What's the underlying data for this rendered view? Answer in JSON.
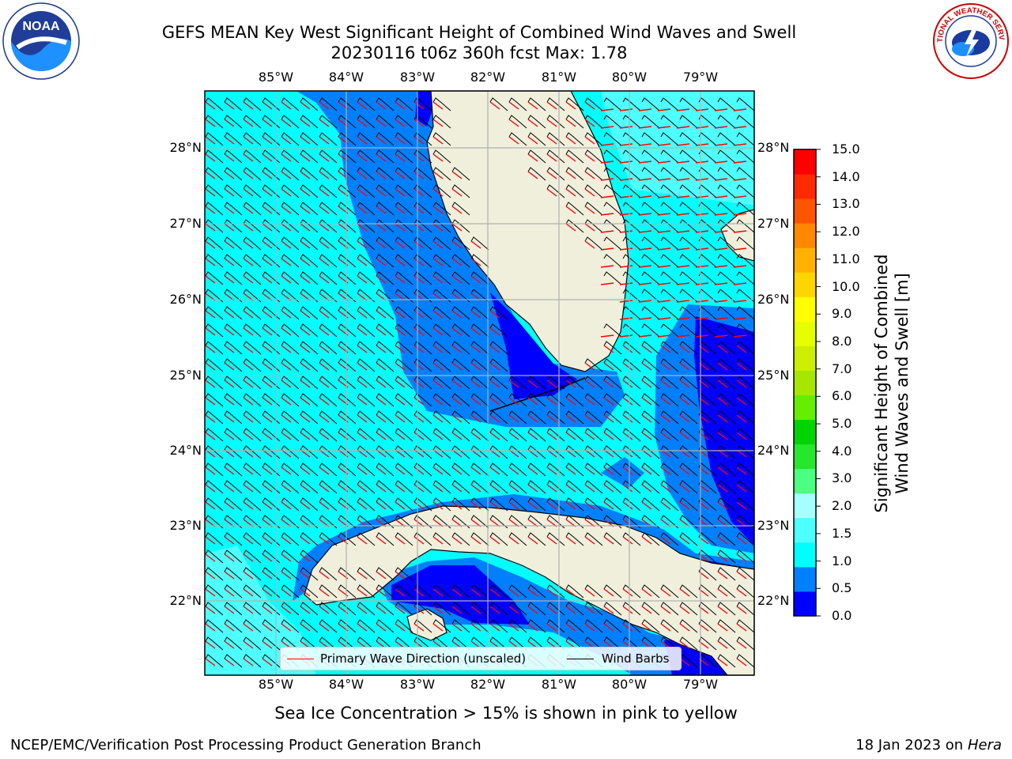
{
  "header": {
    "title_line1": "GEFS MEAN Key West Significant Height of Combined Wind Waves and Swell",
    "title_line2": "20230116 t06z 360h fcst   Max: 1.78"
  },
  "logos": {
    "noaa": {
      "icon": "noaa-logo-icon",
      "text": "NOAA",
      "ring_text": "NATIONAL OCEANIC AND ATMOSPHERIC ADMINISTRATION · U.S. DEPARTMENT OF COMMERCE"
    },
    "nws": {
      "icon": "nws-logo-icon",
      "ring_text": "NATIONAL WEATHER SERVICE"
    }
  },
  "map": {
    "lon_labels": [
      "85°W",
      "84°W",
      "83°W",
      "82°W",
      "81°W",
      "80°W",
      "79°W"
    ],
    "lat_labels": [
      "28°N",
      "27°N",
      "26°N",
      "25°N",
      "24°N",
      "23°N",
      "22°N"
    ],
    "land_color": "#efefdc",
    "water_colors": {
      "dark_blue": "#0000ff",
      "mid_blue": "#0080ff",
      "cyan": "#00ffff",
      "light_cyan": "#4dffff"
    }
  },
  "colorbar": {
    "label_line1": "Significant Height of Combined",
    "label_line2": "Wind Waves and Swell [m]",
    "tick_labels": [
      "15.0",
      "14.0",
      "13.0",
      "12.0",
      "11.0",
      "10.0",
      "9.0",
      "8.0",
      "7.0",
      "6.0",
      "5.0",
      "4.0",
      "3.0",
      "2.0",
      "1.5",
      "1.0",
      "0.5",
      "0.0"
    ],
    "colors_bottom_to_top": [
      "#0000ff",
      "#0080ff",
      "#00ffff",
      "#4dffff",
      "#a6ffff",
      "#4dff80",
      "#26e62e",
      "#00d400",
      "#66ee00",
      "#a6e600",
      "#ccee00",
      "#e6ff00",
      "#ffff00",
      "#ffd500",
      "#ffb300",
      "#ff8800",
      "#ff5500",
      "#ff2a00",
      "#ff0000"
    ]
  },
  "legend": {
    "primary_wave": "Primary Wave Direction (unscaled)",
    "wind_barbs": "Wind Barbs",
    "primary_wave_color": "#ff0000",
    "wind_barbs_color": "#000000"
  },
  "footer": {
    "note": "Sea Ice Concentration > 15% is shown in pink to yellow",
    "left": "NCEP/EMC/Verification Post Processing Product Generation Branch",
    "right_date": "18 Jan 2023 on",
    "right_host": "Hera"
  }
}
